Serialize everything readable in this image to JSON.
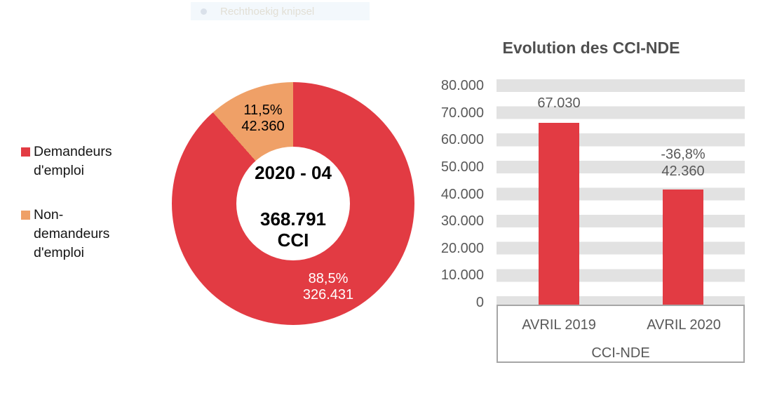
{
  "snip_overlay": {
    "label": "Rechthoekig knipsel"
  },
  "colors": {
    "red": "#e23b43",
    "orange": "#efa067",
    "axis_text": "#595959",
    "title_text": "#4f4f4f",
    "stripe": "#e2e2e2",
    "box_border": "#a6a6a6",
    "label_on_orange": "#000000",
    "label_on_red": "#ffffff"
  },
  "chart_data": [
    {
      "type": "pie",
      "subtype": "donut",
      "title": "",
      "center": {
        "period": "2020 - 04",
        "total": "368.791",
        "unit": "CCI",
        "total_value": 368791
      },
      "slices": [
        {
          "name": "Demandeurs d'emploi",
          "value": 326431,
          "pct": 88.5,
          "pct_label": "88,5%",
          "value_label": "326.431",
          "color": "#e23b43"
        },
        {
          "name": "Non-demandeurs d'emploi",
          "value": 42360,
          "pct": 11.5,
          "pct_label": "11,5%",
          "value_label": "42.360",
          "color": "#efa067"
        }
      ],
      "legend": {
        "position": "left",
        "items": [
          {
            "name": "Demandeurs d'emploi",
            "lines": [
              "Demandeurs",
              "d'emploi"
            ],
            "color": "#e23b43"
          },
          {
            "name": "Non-demandeurs d'emploi",
            "lines": [
              "Non-",
              "demandeurs",
              "d'emploi"
            ],
            "color": "#efa067"
          }
        ]
      }
    },
    {
      "type": "bar",
      "title": "Evolution des CCI-NDE",
      "categories": [
        "AVRIL 2019",
        "AVRIL 2020"
      ],
      "values": [
        67030,
        42360
      ],
      "bar_labels": [
        [
          "67.030"
        ],
        [
          "-36,8%",
          "42.360"
        ]
      ],
      "change_pct": -36.8,
      "bar_color": "#e23b43",
      "xlabel": "CCI-NDE",
      "ylim": [
        0,
        80000
      ],
      "ytick_step": 10000,
      "ytick_labels": [
        "80.000",
        "70.000",
        "60.000",
        "50.000",
        "40.000",
        "30.000",
        "20.000",
        "10.000",
        "0"
      ],
      "grid": "horizontal-stripes",
      "legend_position": "none"
    }
  ]
}
